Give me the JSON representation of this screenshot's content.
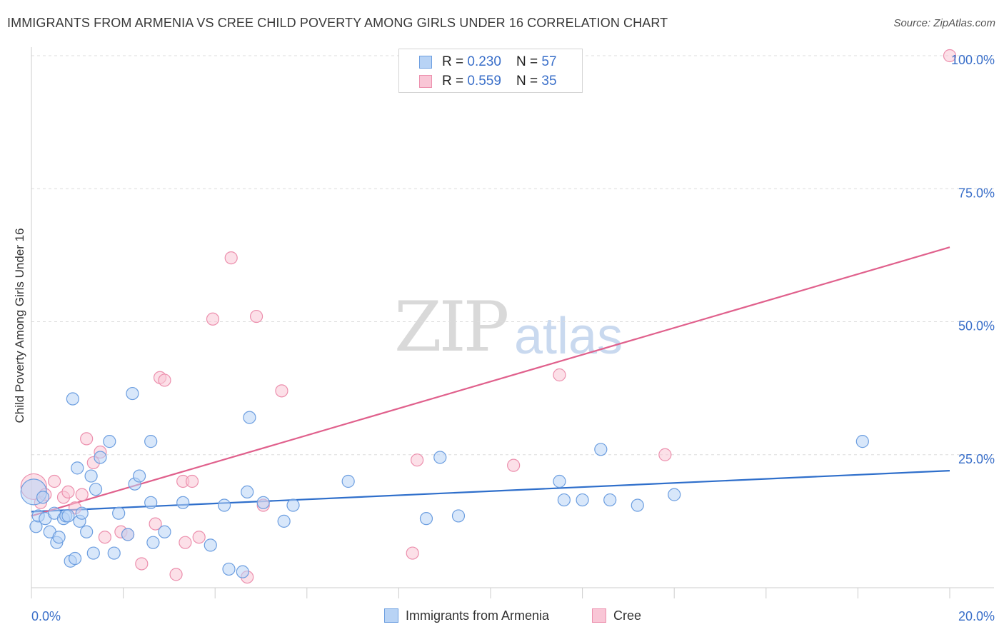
{
  "title": "IMMIGRANTS FROM ARMENIA VS CREE CHILD POVERTY AMONG GIRLS UNDER 16 CORRELATION CHART",
  "source": "Source: ZipAtlas.com",
  "watermark": {
    "zip": "ZIP",
    "atlas": "atlas"
  },
  "legend": {
    "armenia": {
      "r_label": "R = ",
      "r_value": "0.230",
      "n_label": "N = ",
      "n_value": "57"
    },
    "cree": {
      "r_label": "R = ",
      "r_value": "0.559",
      "n_label": "N = ",
      "n_value": "35"
    }
  },
  "bottom_legend": {
    "armenia": "Immigrants from Armenia",
    "cree": "Cree"
  },
  "colors": {
    "armenia_fill": "#b8d3f5",
    "armenia_stroke": "#6c9ee0",
    "armenia_line": "#2f6fcb",
    "cree_fill": "#f9c6d6",
    "cree_stroke": "#ec8fad",
    "cree_line": "#e0608c",
    "tick_label": "#3a6fc9"
  },
  "chart_data": {
    "type": "scatter",
    "title": "IMMIGRANTS FROM ARMENIA VS CREE CHILD POVERTY AMONG GIRLS UNDER 16 CORRELATION CHART",
    "xlabel": "",
    "ylabel": "Child Poverty Among Girls Under 16",
    "xlim": [
      0,
      20
    ],
    "ylim": [
      0,
      105
    ],
    "x_tick_labels": [
      "0.0%",
      "20.0%"
    ],
    "y_ticks": [
      25,
      50,
      75,
      100
    ],
    "y_tick_labels": [
      "25.0%",
      "50.0%",
      "75.0%",
      "100.0%"
    ],
    "series": [
      {
        "name": "Immigrants from Armenia",
        "r": 0.23,
        "n": 57,
        "trend": {
          "x": [
            0,
            20
          ],
          "y": [
            14.3,
            22.0
          ]
        },
        "points": [
          {
            "x": 0.05,
            "y": 18.0,
            "big": true
          },
          {
            "x": 0.1,
            "y": 11.5
          },
          {
            "x": 0.15,
            "y": 13.5
          },
          {
            "x": 0.25,
            "y": 17.0
          },
          {
            "x": 0.3,
            "y": 13.0
          },
          {
            "x": 0.4,
            "y": 10.5
          },
          {
            "x": 0.5,
            "y": 14.0
          },
          {
            "x": 0.55,
            "y": 8.5
          },
          {
            "x": 0.6,
            "y": 9.5
          },
          {
            "x": 0.7,
            "y": 13.0
          },
          {
            "x": 0.75,
            "y": 13.5
          },
          {
            "x": 0.8,
            "y": 13.5
          },
          {
            "x": 0.85,
            "y": 5.0
          },
          {
            "x": 0.9,
            "y": 35.5
          },
          {
            "x": 0.95,
            "y": 5.5
          },
          {
            "x": 1.0,
            "y": 22.5
          },
          {
            "x": 1.05,
            "y": 12.5
          },
          {
            "x": 1.1,
            "y": 14.0
          },
          {
            "x": 1.2,
            "y": 10.5
          },
          {
            "x": 1.3,
            "y": 21.0
          },
          {
            "x": 1.35,
            "y": 6.5
          },
          {
            "x": 1.4,
            "y": 18.5
          },
          {
            "x": 1.5,
            "y": 24.5
          },
          {
            "x": 1.7,
            "y": 27.5
          },
          {
            "x": 1.8,
            "y": 6.5
          },
          {
            "x": 1.9,
            "y": 14.0
          },
          {
            "x": 2.1,
            "y": 10.0
          },
          {
            "x": 2.2,
            "y": 36.5
          },
          {
            "x": 2.25,
            "y": 19.5
          },
          {
            "x": 2.35,
            "y": 21.0
          },
          {
            "x": 2.6,
            "y": 16.0
          },
          {
            "x": 2.6,
            "y": 27.5
          },
          {
            "x": 2.65,
            "y": 8.5
          },
          {
            "x": 2.9,
            "y": 10.5
          },
          {
            "x": 3.3,
            "y": 16.0
          },
          {
            "x": 3.9,
            "y": 8.0
          },
          {
            "x": 4.2,
            "y": 15.5
          },
          {
            "x": 4.3,
            "y": 3.5
          },
          {
            "x": 4.6,
            "y": 3.0
          },
          {
            "x": 4.7,
            "y": 18.0
          },
          {
            "x": 4.75,
            "y": 32.0
          },
          {
            "x": 5.05,
            "y": 16.0
          },
          {
            "x": 5.5,
            "y": 12.5
          },
          {
            "x": 5.7,
            "y": 15.5
          },
          {
            "x": 6.9,
            "y": 20.0
          },
          {
            "x": 8.6,
            "y": 13.0
          },
          {
            "x": 8.9,
            "y": 24.5
          },
          {
            "x": 9.3,
            "y": 13.5
          },
          {
            "x": 11.5,
            "y": 20.0
          },
          {
            "x": 11.6,
            "y": 16.5
          },
          {
            "x": 12.0,
            "y": 16.5
          },
          {
            "x": 12.4,
            "y": 26.0
          },
          {
            "x": 12.6,
            "y": 16.5
          },
          {
            "x": 13.2,
            "y": 15.5
          },
          {
            "x": 14.0,
            "y": 17.5
          },
          {
            "x": 18.1,
            "y": 27.5
          }
        ]
      },
      {
        "name": "Cree",
        "r": 0.559,
        "n": 35,
        "trend": {
          "x": [
            0,
            20
          ],
          "y": [
            13.5,
            64.0
          ]
        },
        "points": [
          {
            "x": 0.05,
            "y": 19.0,
            "big": true
          },
          {
            "x": 0.2,
            "y": 16.0
          },
          {
            "x": 0.3,
            "y": 17.5
          },
          {
            "x": 0.5,
            "y": 20.0
          },
          {
            "x": 0.7,
            "y": 17.0
          },
          {
            "x": 0.8,
            "y": 18.0
          },
          {
            "x": 0.95,
            "y": 15.0
          },
          {
            "x": 1.1,
            "y": 17.5
          },
          {
            "x": 1.2,
            "y": 28.0
          },
          {
            "x": 1.35,
            "y": 23.5
          },
          {
            "x": 1.5,
            "y": 25.5
          },
          {
            "x": 1.6,
            "y": 9.5
          },
          {
            "x": 1.95,
            "y": 10.5
          },
          {
            "x": 2.1,
            "y": 10.0
          },
          {
            "x": 2.4,
            "y": 4.5
          },
          {
            "x": 2.7,
            "y": 12.0
          },
          {
            "x": 2.8,
            "y": 39.5
          },
          {
            "x": 2.9,
            "y": 39.0
          },
          {
            "x": 3.15,
            "y": 2.5
          },
          {
            "x": 3.3,
            "y": 20.0
          },
          {
            "x": 3.35,
            "y": 8.5
          },
          {
            "x": 3.5,
            "y": 20.0
          },
          {
            "x": 3.65,
            "y": 9.5
          },
          {
            "x": 3.95,
            "y": 50.5
          },
          {
            "x": 4.35,
            "y": 62.0
          },
          {
            "x": 4.7,
            "y": 2.0
          },
          {
            "x": 4.9,
            "y": 51.0
          },
          {
            "x": 5.05,
            "y": 15.5
          },
          {
            "x": 5.45,
            "y": 37.0
          },
          {
            "x": 8.3,
            "y": 6.5
          },
          {
            "x": 8.4,
            "y": 24.0
          },
          {
            "x": 10.5,
            "y": 23.0
          },
          {
            "x": 11.5,
            "y": 40.0
          },
          {
            "x": 13.8,
            "y": 25.0
          },
          {
            "x": 20.0,
            "y": 100.0
          }
        ]
      }
    ]
  }
}
